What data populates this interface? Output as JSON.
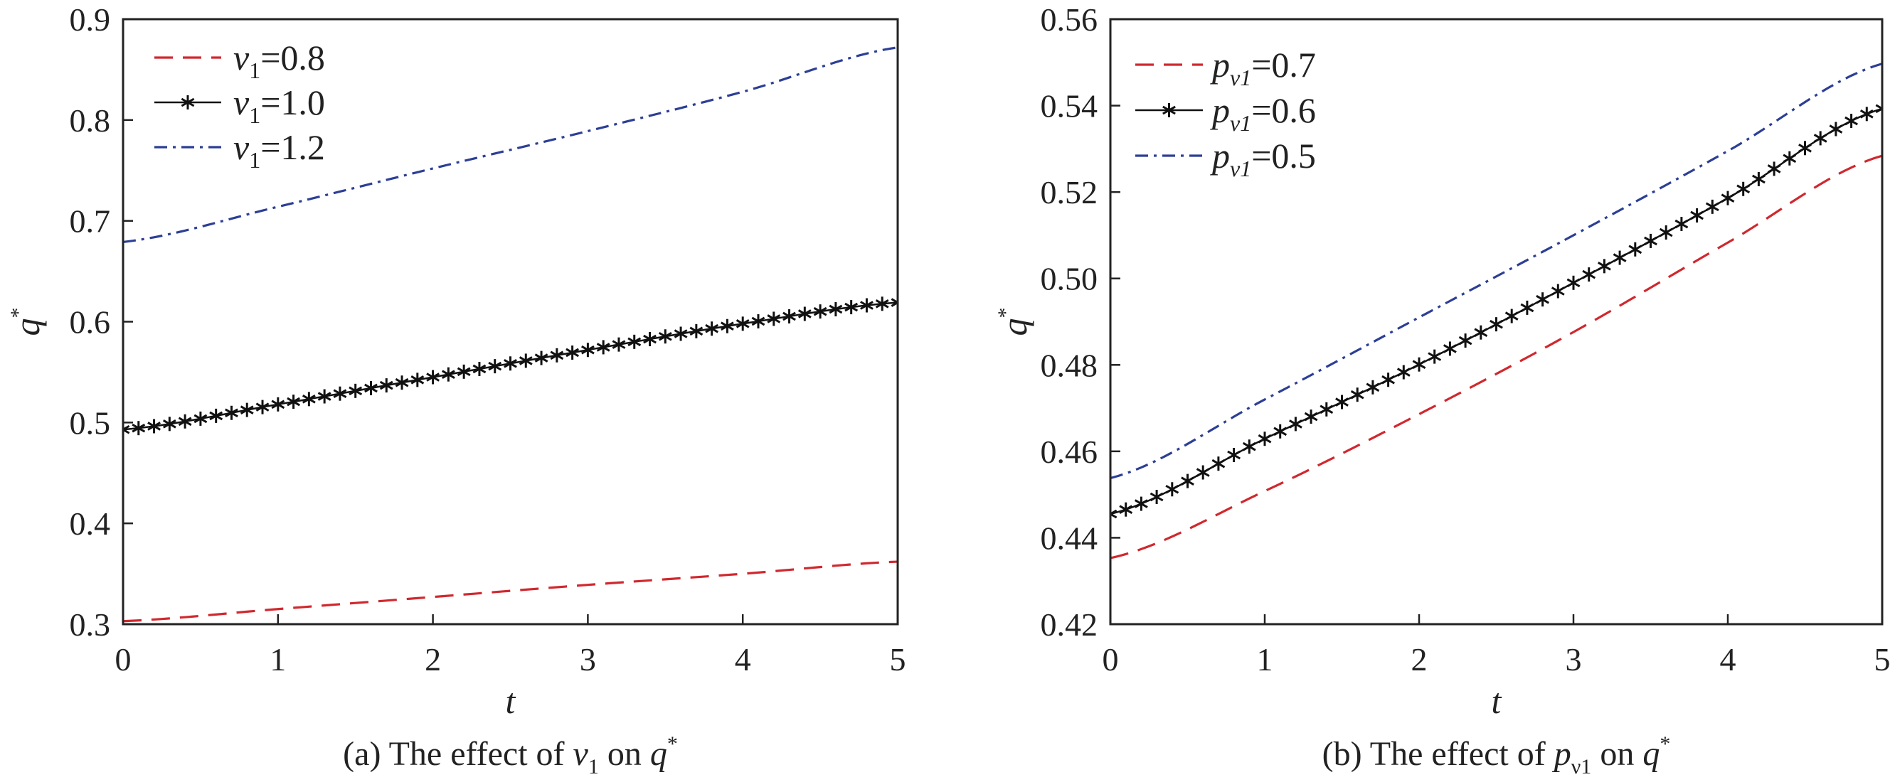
{
  "chart_data": [
    {
      "type": "line",
      "xlabel": "t",
      "ylabel": {
        "main": "q",
        "sup": "*"
      },
      "xlim": [
        0,
        5
      ],
      "ylim": [
        0.3,
        0.9
      ],
      "xticks": [
        "0",
        "1",
        "2",
        "3",
        "4",
        "5"
      ],
      "yticks": [
        "0.3",
        "0.4",
        "0.5",
        "0.6",
        "0.7",
        "0.8",
        "0.9"
      ],
      "grid": false,
      "legend_position": "top-left",
      "caption": [
        {
          "t": "(a) The effect of "
        },
        {
          "t": "ν",
          "i": true
        },
        {
          "t": "1",
          "sub": true
        },
        {
          "t": " on "
        },
        {
          "t": "q",
          "i": true
        },
        {
          "t": "*",
          "sup": true
        }
      ],
      "x": [
        0,
        1,
        2,
        3,
        4,
        5
      ],
      "series": [
        {
          "name": "ν1=0.8",
          "label": {
            "main": "ν",
            "sub": "1",
            "rest": "=0.8"
          },
          "style": "dashed",
          "color": "#d0282e",
          "marker": "none",
          "values": [
            0.303,
            0.315,
            0.327,
            0.339,
            0.35,
            0.362
          ]
        },
        {
          "name": "ν1=1.0",
          "label": {
            "main": "ν",
            "sub": "1",
            "rest": "=1.0"
          },
          "style": "solid",
          "color": "#111111",
          "marker": "asterisk",
          "values": [
            0.493,
            0.518,
            0.545,
            0.572,
            0.598,
            0.619
          ]
        },
        {
          "name": "ν1=1.2",
          "label": {
            "main": "ν",
            "sub": "1",
            "rest": "=1.2"
          },
          "style": "dashdot",
          "color": "#2c3f95",
          "marker": "none",
          "values": [
            0.679,
            0.714,
            0.752,
            0.789,
            0.828,
            0.872
          ]
        }
      ]
    },
    {
      "type": "line",
      "xlabel": "t",
      "ylabel": {
        "main": "q",
        "sup": "*"
      },
      "xlim": [
        0,
        5
      ],
      "ylim": [
        0.42,
        0.56
      ],
      "xticks": [
        "0",
        "1",
        "2",
        "3",
        "4",
        "5"
      ],
      "yticks": [
        "0.42",
        "0.44",
        "0.46",
        "0.48",
        "0.50",
        "0.52",
        "0.54",
        "0.56"
      ],
      "grid": false,
      "legend_position": "top-left",
      "caption": [
        {
          "t": "(b) The effect of "
        },
        {
          "t": "p",
          "i": true
        },
        {
          "t": "ν1",
          "sub": true
        },
        {
          "t": " on "
        },
        {
          "t": "q",
          "i": true
        },
        {
          "t": "*",
          "sup": true
        }
      ],
      "x": [
        0,
        1,
        2,
        3,
        4,
        5
      ],
      "series": [
        {
          "name": "pν1=0.7",
          "label": {
            "main": "p",
            "sub": "ν1",
            "rest": "=0.7"
          },
          "style": "dashed",
          "color": "#d0282e",
          "marker": "none",
          "values": [
            0.4353,
            0.4508,
            0.4686,
            0.4876,
            0.5083,
            0.5284
          ]
        },
        {
          "name": "pν1=0.6",
          "label": {
            "main": "p",
            "sub": "ν1",
            "rest": "=0.6"
          },
          "style": "solid",
          "color": "#111111",
          "marker": "asterisk",
          "values": [
            0.4455,
            0.4629,
            0.4801,
            0.499,
            0.5186,
            0.5393
          ]
        },
        {
          "name": "pν1=0.5",
          "label": {
            "main": "p",
            "sub": "ν1",
            "rest": "=0.5"
          },
          "style": "dashdot",
          "color": "#2c3f95",
          "marker": "none",
          "values": [
            0.4538,
            0.472,
            0.491,
            0.51,
            0.5295,
            0.5497
          ]
        }
      ]
    }
  ]
}
